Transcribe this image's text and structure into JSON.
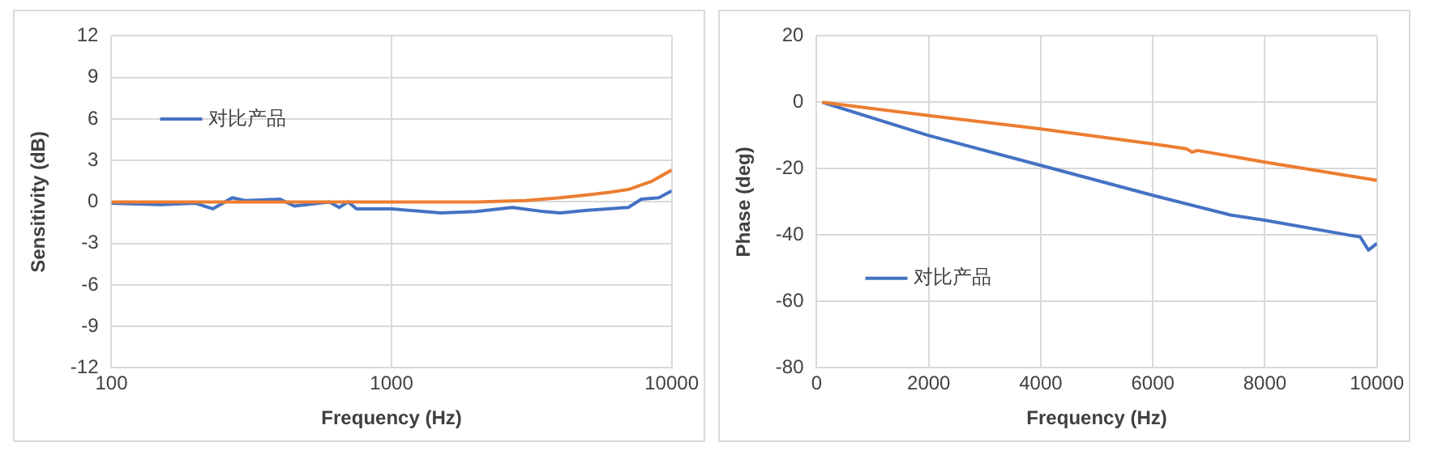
{
  "chart_data": [
    {
      "type": "line",
      "xlabel": "Frequency (Hz)",
      "ylabel": "Sensitivity (dB)",
      "log": "x",
      "xlim": [
        100,
        10000
      ],
      "xticks": [
        100,
        1000,
        10000
      ],
      "ylim": [
        -12,
        12
      ],
      "yticks": [
        -12,
        -9,
        -6,
        -3,
        0,
        3,
        6,
        9,
        12
      ],
      "grid": true,
      "legend": "top left",
      "marker": "none",
      "series": [
        {
          "color": "#ed7d31",
          "x": [
            100,
            500,
            1000,
            2000,
            3000,
            4000,
            5000,
            6000,
            7000,
            8500,
            10000
          ],
          "values": [
            0,
            0,
            0,
            0,
            0.1,
            0.3,
            0.5,
            0.7,
            0.9,
            1.5,
            2.3
          ]
        },
        {
          "name": "对比产品",
          "color": "#4472c4",
          "x": [
            100,
            150,
            200,
            230,
            270,
            300,
            400,
            450,
            600,
            650,
            700,
            750,
            1000,
            1500,
            2000,
            2700,
            3500,
            4000,
            5000,
            7000,
            7800,
            9000,
            10000
          ],
          "values": [
            -0.1,
            -0.2,
            -0.1,
            -0.5,
            0.3,
            0.1,
            0.2,
            -0.3,
            0,
            -0.4,
            0,
            -0.5,
            -0.5,
            -0.8,
            -0.7,
            -0.4,
            -0.7,
            -0.8,
            -0.6,
            -0.4,
            0.2,
            0.3,
            0.8
          ]
        }
      ]
    },
    {
      "type": "line",
      "xlabel": "Frequency (Hz)",
      "ylabel": "Phase (deg)",
      "xlim": [
        0,
        10000
      ],
      "xticks": [
        0,
        2000,
        4000,
        6000,
        8000,
        10000
      ],
      "ylim": [
        -80,
        20
      ],
      "yticks": [
        -80,
        -60,
        -40,
        -20,
        0,
        20
      ],
      "grid": true,
      "legend": "bottom left",
      "marker": "none",
      "series": [
        {
          "color": "#ed7d31",
          "x": [
            100,
            2000,
            4000,
            6000,
            6600,
            6700,
            6800,
            8000,
            10000
          ],
          "values": [
            0,
            -4,
            -8,
            -12.5,
            -14,
            -15,
            -14.5,
            -18,
            -23.5
          ]
        },
        {
          "name": "对比产品",
          "color": "#4472c4",
          "x": [
            100,
            2000,
            4000,
            6000,
            7400,
            8000,
            9500,
            9700,
            9850,
            10000
          ],
          "values": [
            0,
            -10,
            -19,
            -28,
            -34,
            -35.5,
            -40,
            -40.5,
            -44.5,
            -42.5
          ]
        }
      ]
    }
  ]
}
